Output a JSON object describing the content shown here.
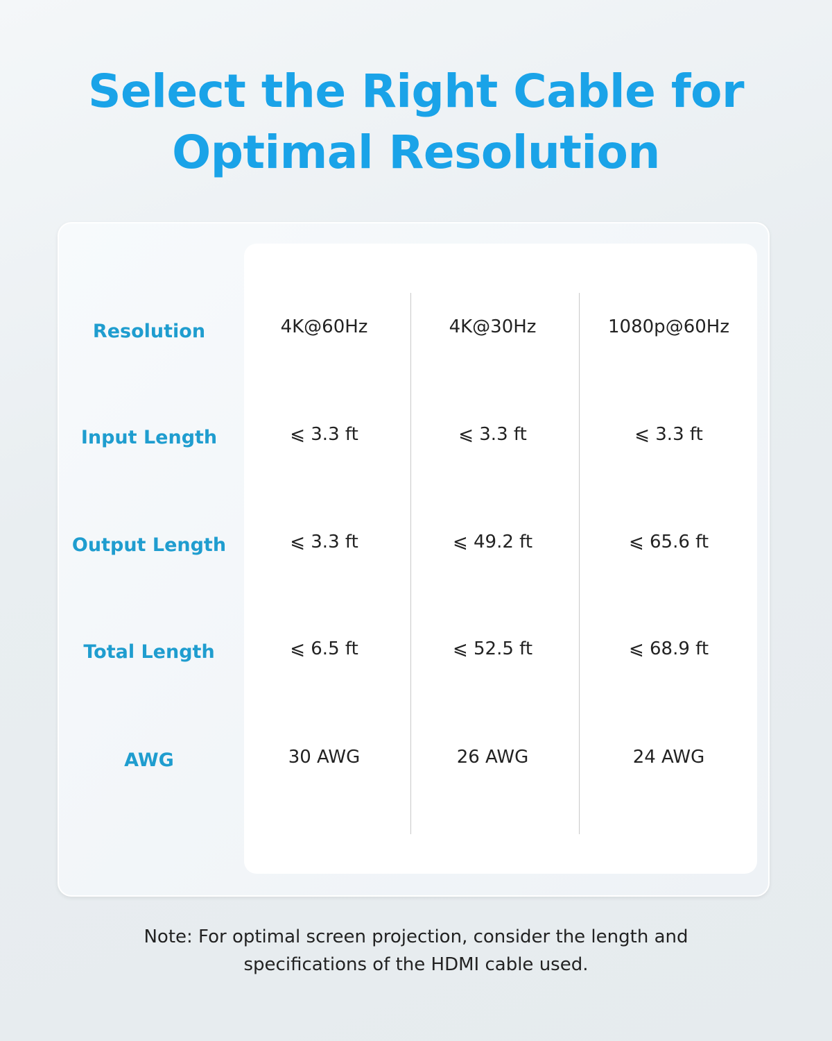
{
  "title": {
    "line1": "Select the Right Cable for",
    "line2": "Optimal Resolution"
  },
  "table": {
    "rows": [
      {
        "label": "Resolution",
        "values": [
          "4K@60Hz",
          "4K@30Hz",
          "1080p@60Hz"
        ]
      },
      {
        "label": "Input Length",
        "values": [
          "⩽ 3.3 ft",
          "⩽ 3.3 ft",
          "⩽ 3.3 ft"
        ]
      },
      {
        "label": "Output Length",
        "values": [
          "⩽ 3.3 ft",
          "⩽ 49.2 ft",
          "⩽ 65.6 ft"
        ]
      },
      {
        "label": "Total Length",
        "values": [
          "⩽ 6.5 ft",
          "⩽ 52.5 ft",
          "⩽ 68.9 ft"
        ]
      },
      {
        "label": "AWG",
        "values": [
          "30 AWG",
          "26 AWG",
          "24 AWG"
        ]
      }
    ]
  },
  "note": {
    "line1": "Note: For optimal screen projection, consider the length and",
    "line2": "specifications of the HDMI cable used."
  },
  "colors": {
    "accent": "#1aa3e8",
    "label": "#1f9dcf"
  }
}
